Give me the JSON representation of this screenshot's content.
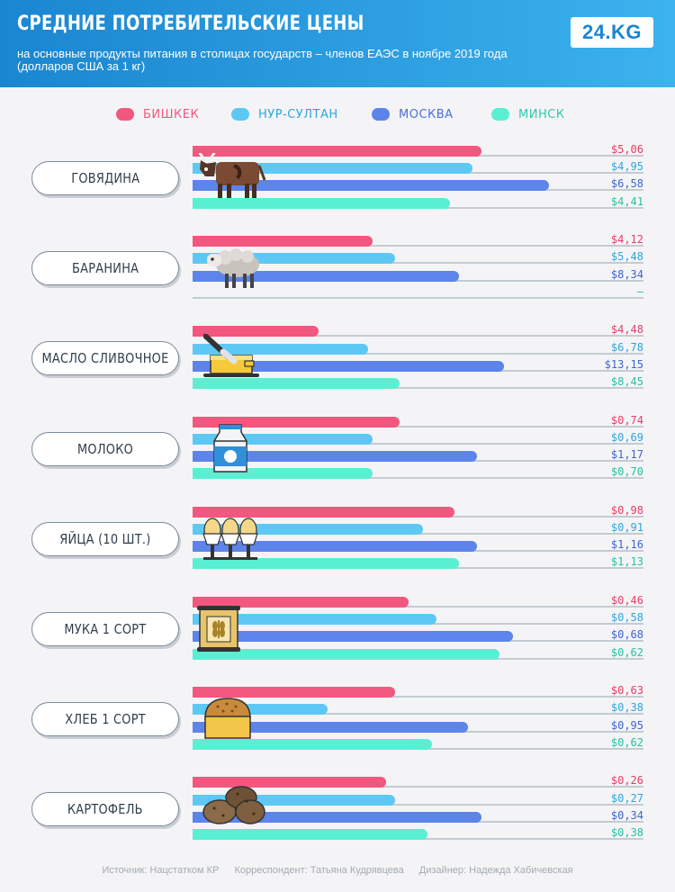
{
  "header": {
    "title": "СРЕДНИЕ ПОТРЕБИТЕЛЬСКИЕ ЦЕНЫ",
    "subtitle": "на основные продукты питания в столицах государств – членов ЕАЭС в ноябре 2019 года (долларов США за 1 кг)",
    "logo": "24.KG"
  },
  "legend": [
    {
      "name": "БИШКЕК",
      "color": "#f2577f"
    },
    {
      "name": "НУР-СУЛТАН",
      "color": "#5ec8f5"
    },
    {
      "name": "МОСКВА",
      "color": "#5d84ea"
    },
    {
      "name": "МИНСК",
      "color": "#59efd2"
    }
  ],
  "footer": {
    "source": "Источник: Нацстатком КР",
    "correspondent": "Корреспондент: Татьяна Кудрявцева",
    "designer": "Дизайнер: Надежда Хабичевская"
  },
  "chart_data": {
    "type": "bar",
    "title": "СРЕДНИЕ ПОТРЕБИТЕЛЬСКИЕ ЦЕНЫ",
    "unit": "долларов США за 1 кг",
    "categories": [
      {
        "name": "ГОВЯДИНА",
        "icon": "cow-icon",
        "values": [
          5.06,
          4.95,
          6.58,
          4.41
        ],
        "labels": [
          "$5,06",
          "$4,95",
          "$6,58",
          "$4,41"
        ],
        "fill": [
          0.64,
          0.62,
          0.79,
          0.57
        ]
      },
      {
        "name": "БАРАНИНА",
        "icon": "sheep-icon",
        "values": [
          4.12,
          5.48,
          8.34,
          null
        ],
        "labels": [
          "$4,12",
          "$5,48",
          "$8,34",
          "–"
        ],
        "fill": [
          0.4,
          0.45,
          0.59,
          0
        ]
      },
      {
        "name": "МАСЛО СЛИВОЧНОЕ",
        "icon": "butter-icon",
        "values": [
          4.48,
          6.78,
          13.15,
          8.45
        ],
        "labels": [
          "$4,48",
          "$6,78",
          "$13,15",
          "$8,45"
        ],
        "fill": [
          0.28,
          0.39,
          0.69,
          0.46
        ]
      },
      {
        "name": "МОЛОКО",
        "icon": "milk-carton-icon",
        "values": [
          0.74,
          0.69,
          1.17,
          0.7
        ],
        "labels": [
          "$0,74",
          "$0,69",
          "$1,17",
          "$0,70"
        ],
        "fill": [
          0.46,
          0.4,
          0.63,
          0.4
        ]
      },
      {
        "name": "ЯЙЦА (10 ШТ.)",
        "icon": "eggs-icon",
        "values": [
          0.98,
          0.91,
          1.16,
          1.13
        ],
        "labels": [
          "$0,98",
          "$0,91",
          "$1,16",
          "$1,13"
        ],
        "fill": [
          0.58,
          0.51,
          0.63,
          0.59
        ]
      },
      {
        "name": "МУКА 1 СОРТ",
        "icon": "flour-sack-icon",
        "values": [
          0.46,
          0.58,
          0.68,
          0.62
        ],
        "labels": [
          "$0,46",
          "$0,58",
          "$0,68",
          "$0,62"
        ],
        "fill": [
          0.48,
          0.54,
          0.71,
          0.68
        ]
      },
      {
        "name": "ХЛЕБ 1 СОРТ",
        "icon": "bread-icon",
        "values": [
          0.63,
          0.38,
          0.95,
          0.62
        ],
        "labels": [
          "$0,63",
          "$0,38",
          "$0,95",
          "$0,62"
        ],
        "fill": [
          0.45,
          0.3,
          0.61,
          0.53
        ]
      },
      {
        "name": "КАРТОФЕЛЬ",
        "icon": "potato-icon",
        "values": [
          0.26,
          0.27,
          0.34,
          0.38
        ],
        "labels": [
          "$0,26",
          "$0,27",
          "$0,34",
          "$0,38"
        ],
        "fill": [
          0.43,
          0.45,
          0.64,
          0.52
        ]
      }
    ],
    "series": [
      "БИШКЕК",
      "НУР-СУЛТАН",
      "МОСКВА",
      "МИНСК"
    ]
  }
}
